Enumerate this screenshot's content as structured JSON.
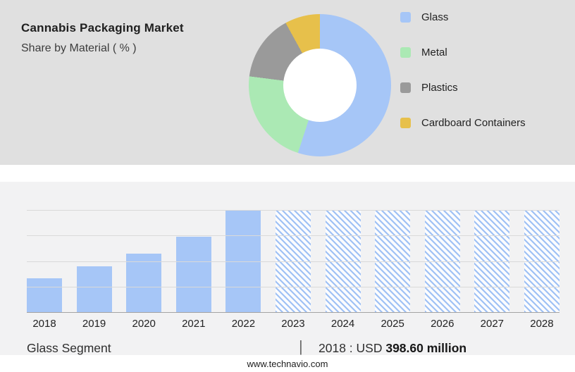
{
  "header": {
    "title": "Cannabis Packaging Market",
    "subtitle": "Share by Material ( % )"
  },
  "donut_chart": {
    "hole_color": "#ffffff",
    "segments": [
      {
        "label": "Glass",
        "color": "#a6c6f7",
        "share_pct": 55
      },
      {
        "label": "Metal",
        "color": "#abe9b4",
        "share_pct": 22
      },
      {
        "label": "Plastics",
        "color": "#9a9a9a",
        "share_pct": 15
      },
      {
        "label": "Cardboard Containers",
        "color": "#e7c04b",
        "share_pct": 8
      }
    ]
  },
  "chart_data": [
    {
      "type": "pie",
      "variant": "donut",
      "title": "Cannabis Packaging Market - Share by Material ( % )",
      "labels": [
        "Glass",
        "Metal",
        "Plastics",
        "Cardboard Containers"
      ],
      "values_pct_est": [
        55,
        22,
        15,
        8
      ],
      "legend_position": "right"
    },
    {
      "type": "bar",
      "title": "Glass Segment",
      "categories": [
        "2018",
        "2019",
        "2020",
        "2021",
        "2022",
        "2023",
        "2024",
        "2025",
        "2026",
        "2027",
        "2028"
      ],
      "values_height_pct": [
        33,
        45,
        57,
        74,
        100,
        100,
        100,
        100,
        100,
        100,
        100
      ],
      "bar_styles": [
        "solid",
        "solid",
        "solid",
        "solid",
        "solid",
        "hatched",
        "hatched",
        "hatched",
        "hatched",
        "hatched",
        "hatched"
      ],
      "known_values": {
        "2018_usd_million": 398.6
      },
      "unit": "USD million",
      "bar_color": "#a6c6f7",
      "grid": "horizontal",
      "gridline_pcts": [
        0,
        25,
        50,
        75
      ]
    }
  ],
  "footer": {
    "segment_label": "Glass Segment",
    "divider": "|",
    "value_prefix": "2018 : USD",
    "value_bold": "398.60 million",
    "website": "www.technavio.com"
  }
}
